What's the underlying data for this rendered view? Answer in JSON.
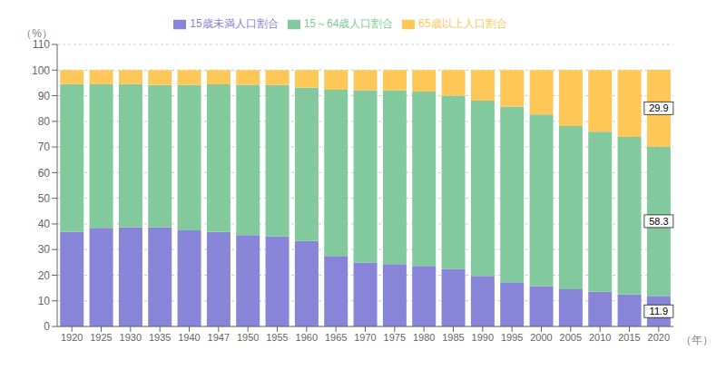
{
  "chart_data": {
    "type": "bar",
    "stacked": true,
    "grid": true,
    "legend": "top",
    "xlabel": "（年）",
    "ylabel": "（%）",
    "categories": [
      "1920",
      "1925",
      "1930",
      "1935",
      "1940",
      "1947",
      "1950",
      "1955",
      "1960",
      "1965",
      "1970",
      "1975",
      "1980",
      "1985",
      "1990",
      "1995",
      "2000",
      "2005",
      "2010",
      "2015",
      "2020"
    ],
    "series": [
      {
        "name": "15歳未満人口割合",
        "color": "#8884d8",
        "values": [
          37.0,
          38.5,
          38.7,
          38.7,
          37.5,
          36.9,
          35.6,
          35.2,
          33.3,
          27.5,
          24.9,
          24.3,
          23.6,
          22.5,
          19.7,
          17.2,
          15.7,
          14.5,
          13.5,
          12.5,
          11.9
        ]
      },
      {
        "name": "15～64歳人口割合",
        "color": "#82ca9d",
        "values": [
          57.5,
          55.9,
          55.8,
          55.5,
          56.7,
          57.5,
          58.7,
          59.0,
          59.9,
          64.8,
          67.2,
          67.8,
          68.0,
          67.5,
          68.4,
          68.6,
          67.0,
          63.7,
          62.5,
          61.4,
          58.3
        ]
      },
      {
        "name": "65歳以上人口割合",
        "color": "#ffc658",
        "values": [
          5.5,
          5.6,
          5.5,
          5.8,
          5.8,
          5.6,
          5.7,
          5.8,
          6.8,
          7.7,
          7.9,
          7.9,
          8.4,
          10.0,
          11.9,
          14.2,
          17.3,
          21.8,
          24.0,
          26.1,
          29.9
        ]
      }
    ],
    "annotations": [
      {
        "text": "11.9",
        "x": "2020",
        "series": "15歳未満人口割合"
      },
      {
        "text": "58.3",
        "x": "2020",
        "series": "15～64歳人口割合"
      },
      {
        "text": "29.9",
        "x": "2020",
        "series": "65歳以上人口割合"
      }
    ],
    "ylim": [
      0,
      110
    ],
    "yticks": [
      0,
      10,
      20,
      30,
      40,
      50,
      60,
      70,
      80,
      90,
      100,
      110
    ]
  }
}
